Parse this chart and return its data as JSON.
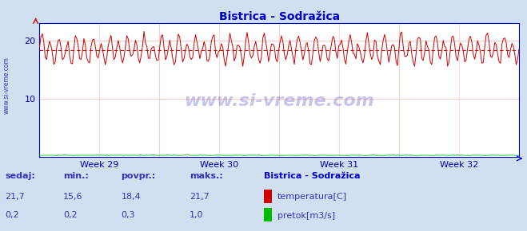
{
  "title": "Bistrica - Sodražica",
  "title_color": "#0000cc",
  "bg_color": "#d0e0f0",
  "plot_bg_color": "#ffffff",
  "watermark": "www.si-vreme.com",
  "watermark_color": "#3333bb",
  "xlabel_color": "#0000aa",
  "ylabel_color": "#0000aa",
  "week_labels": [
    "Week 29",
    "Week 30",
    "Week 31",
    "Week 32"
  ],
  "ylim": [
    0,
    23
  ],
  "yticks": [
    10,
    20
  ],
  "temp_color": "#cc0000",
  "flow_color": "#00bb00",
  "avg_line_color": "#cc0000",
  "temp_avg": 18.4,
  "temp_min": 15.6,
  "temp_max": 21.7,
  "temp_current": 21.7,
  "flow_current": 0.2,
  "flow_min": 0.2,
  "flow_avg": 0.3,
  "flow_max": 1.0,
  "grid_color": "#ffcccc",
  "axis_color": "#0000cc",
  "legend_title": "Bistrica - Sodražica",
  "legend_title_color": "#0000cc",
  "label_sedaj": "sedaj:",
  "label_min": "min.:",
  "label_povpr": "povpr.:",
  "label_maks": "maks.:",
  "legend_temp": "temperatura[C]",
  "legend_flow": "pretok[m3/s]",
  "n_points": 336,
  "base_temp": 18.4,
  "n_weeks": 4,
  "font_size_title": 10,
  "font_size_ticks": 8,
  "font_size_legend": 8,
  "font_size_watermark": 16,
  "left_label": "www.si-vreme.com"
}
